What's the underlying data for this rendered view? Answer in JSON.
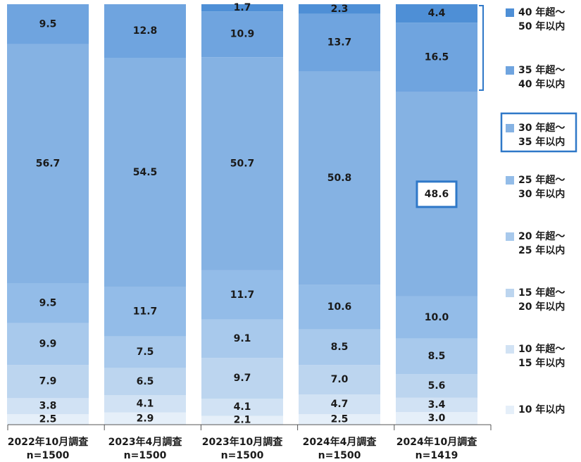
{
  "chart_data": {
    "type": "bar",
    "stacked": true,
    "orientation": "vertical",
    "unit": "%",
    "ylim": [
      0,
      100
    ],
    "categories": [
      {
        "line1": "2022年10月調査",
        "line2": "n=1500"
      },
      {
        "line1": "2023年4月調査",
        "line2": "n=1500"
      },
      {
        "line1": "2023年10月調査",
        "line2": "n=1500"
      },
      {
        "line1": "2024年4月調査",
        "line2": "n=1500"
      },
      {
        "line1": "2024年10月調査",
        "line2": "n=1419"
      }
    ],
    "series": [
      {
        "name": "10年以内",
        "name_lines": [
          "10 年以内"
        ],
        "color": "#e5eff9",
        "values": [
          2.5,
          2.9,
          2.1,
          2.5,
          3.0
        ]
      },
      {
        "name": "10年超～15年以内",
        "name_lines": [
          "10 年超～",
          "15 年以内"
        ],
        "color": "#d1e2f4",
        "values": [
          3.8,
          4.1,
          4.1,
          4.7,
          3.4
        ]
      },
      {
        "name": "15年超～20年以内",
        "name_lines": [
          "15 年超～",
          "20 年以内"
        ],
        "color": "#bcd5ef",
        "values": [
          7.9,
          6.5,
          9.7,
          7.0,
          5.6
        ]
      },
      {
        "name": "20年超～25年以内",
        "name_lines": [
          "20 年超～",
          "25 年以内"
        ],
        "color": "#a8c9ec",
        "values": [
          9.9,
          7.5,
          9.1,
          8.5,
          8.5
        ]
      },
      {
        "name": "25年超～30年以内",
        "name_lines": [
          "25 年超～",
          "30 年以内"
        ],
        "color": "#93bce8",
        "values": [
          9.5,
          11.7,
          11.7,
          10.6,
          10.0
        ]
      },
      {
        "name": "30年超～35年以内",
        "name_lines": [
          "30 年超～",
          "35 年以内"
        ],
        "color": "#85b2e3",
        "values": [
          56.7,
          54.5,
          50.7,
          50.8,
          48.6
        ]
      },
      {
        "name": "35年超～40年以内",
        "name_lines": [
          "35 年超～",
          "40 年以内"
        ],
        "color": "#6fa4df",
        "values": [
          9.5,
          12.8,
          10.9,
          13.7,
          16.5
        ]
      },
      {
        "name": "40年超～50年以内",
        "name_lines": [
          "40 年超～",
          "50 年以内"
        ],
        "color": "#4e8fd6",
        "values": [
          null,
          null,
          1.7,
          2.3,
          4.4
        ]
      }
    ],
    "highlight": {
      "series": "30年超～35年以内",
      "category_index": 4,
      "color": "#2f78c8"
    },
    "bracket_series": [
      "35年超～40年以内",
      "40年超～50年以内"
    ],
    "legend_position": "right",
    "grid": false
  }
}
